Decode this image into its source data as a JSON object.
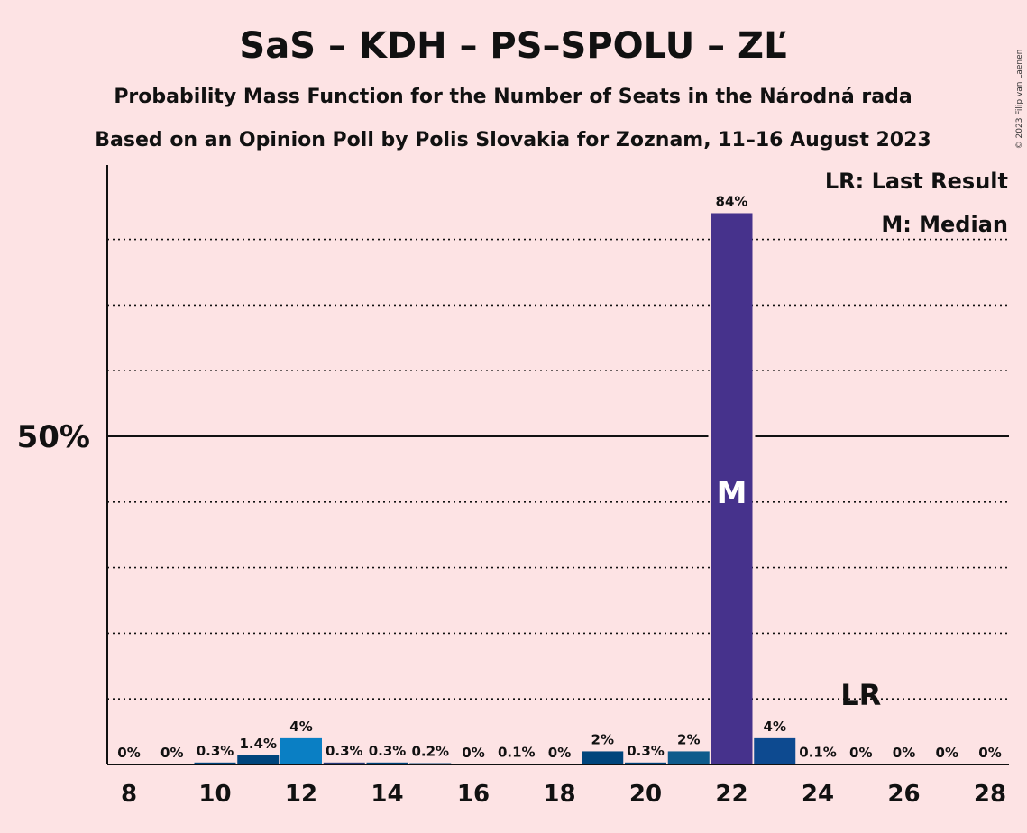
{
  "title": "SaS – KDH – PS–SPOLU – ZĽ",
  "subtitle1": "Probability Mass Function for the Number of Seats in the Národná rada",
  "subtitle2": "Based on an Opinion Poll by Polis Slovakia for Zoznam, 11–16 August 2023",
  "credit": "© 2023 Filip van Laenen",
  "legend": {
    "last_result": "LR: Last Result",
    "median": "M: Median"
  },
  "markers": {
    "median_label": "M",
    "last_result_label": "LR"
  },
  "chart_data": {
    "type": "bar",
    "x": [
      8,
      9,
      10,
      11,
      12,
      13,
      14,
      15,
      16,
      17,
      18,
      19,
      20,
      21,
      22,
      23,
      24,
      25,
      26,
      27,
      28
    ],
    "values": [
      0,
      0,
      0.3,
      1.4,
      4,
      0.3,
      0.3,
      0.2,
      0,
      0.1,
      0,
      2,
      0.3,
      2,
      84,
      4,
      0.1,
      0,
      0,
      0,
      0
    ],
    "value_labels": [
      "0%",
      "0%",
      "0.3%",
      "1.4%",
      "4%",
      "0.3%",
      "0.3%",
      "0.2%",
      "0%",
      "0.1%",
      "0%",
      "2%",
      "0.3%",
      "2%",
      "84%",
      "4%",
      "0.1%",
      "0%",
      "0%",
      "0%",
      "0%"
    ],
    "x_tick_labels": [
      "8",
      "10",
      "12",
      "14",
      "16",
      "18",
      "20",
      "22",
      "24",
      "26",
      "28"
    ],
    "y_tick_label": "50%",
    "ylim": [
      0,
      91
    ],
    "gridlines": [
      10,
      20,
      30,
      40,
      60,
      70,
      80
    ],
    "solid_gridline": 50,
    "median": 22,
    "last_result": 25,
    "colors": {
      "11": "#00457c",
      "12": "#0a7fc4",
      "13": "#263a7a",
      "19": "#00457c",
      "21": "#0f5b8c",
      "22": "#46328c",
      "23": "#0d4a90",
      "default": "#00457c"
    },
    "background": "#fde3e4"
  }
}
